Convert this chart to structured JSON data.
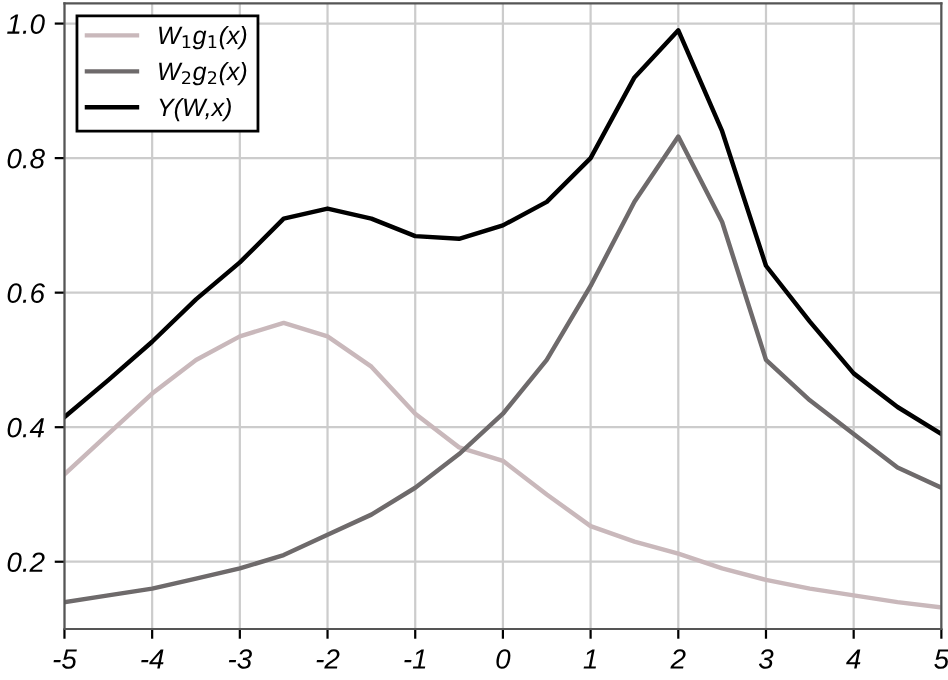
{
  "chart_data": {
    "type": "line",
    "x": [
      -5,
      -4.5,
      -4,
      -3.5,
      -3,
      -2.5,
      -2,
      -1.5,
      -1,
      -0.5,
      0,
      0.5,
      1,
      1.5,
      2,
      2.5,
      3,
      3.5,
      4,
      4.5,
      5
    ],
    "series": [
      {
        "name": "W$_{1}$g$_{1}$(x)",
        "color": "#c9b8bb",
        "values": [
          0.33,
          0.39,
          0.45,
          0.5,
          0.535,
          0.555,
          0.535,
          0.49,
          0.42,
          0.37,
          0.35,
          0.3,
          0.253,
          0.23,
          0.212,
          0.19,
          0.173,
          0.16,
          0.15,
          0.14,
          0.132
        ]
      },
      {
        "name": "W$_{2}$g$_{2}$(x)",
        "color": "#6e6a6b",
        "values": [
          0.14,
          0.15,
          0.16,
          0.175,
          0.19,
          0.21,
          0.24,
          0.27,
          0.31,
          0.36,
          0.42,
          0.5,
          0.61,
          0.735,
          0.832,
          0.705,
          0.5,
          0.44,
          0.39,
          0.34,
          0.31
        ]
      },
      {
        "name": "Y(W,x)",
        "color": "#000000",
        "values": [
          0.415,
          0.47,
          0.527,
          0.59,
          0.645,
          0.71,
          0.725,
          0.71,
          0.684,
          0.68,
          0.7,
          0.735,
          0.8,
          0.92,
          0.99,
          0.84,
          0.64,
          0.557,
          0.48,
          0.43,
          0.39
        ]
      }
    ],
    "xlim": [
      -5,
      5
    ],
    "xticks": [
      -5,
      -4,
      -3,
      -2,
      -1,
      0,
      1,
      2,
      3,
      4,
      5
    ],
    "ylim": [
      0.1,
      1.03
    ],
    "yticks": [
      0.2,
      0.4,
      0.6,
      0.8,
      {
        "value": 1.0,
        "label": "1.0"
      }
    ],
    "grid": true,
    "legend": "top left",
    "marker": "none",
    "line_style": "solid"
  }
}
